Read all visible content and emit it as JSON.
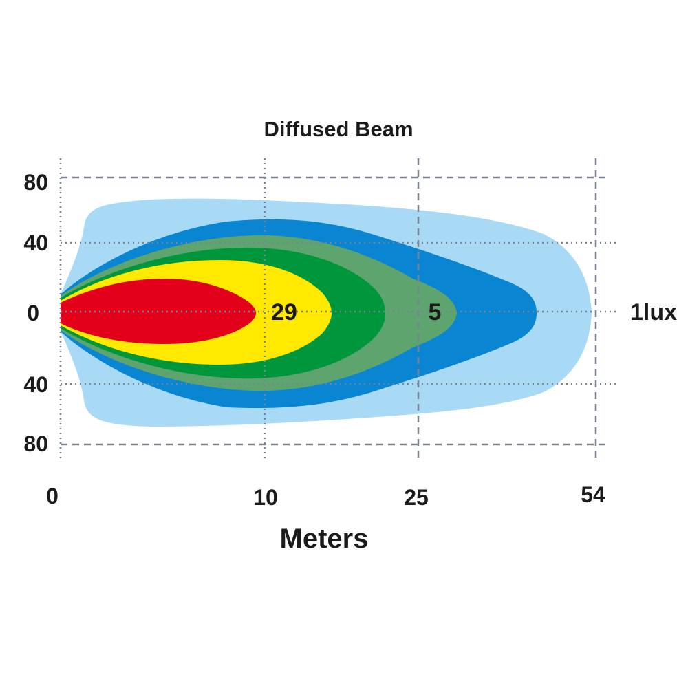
{
  "chart_data": {
    "type": "area",
    "title": "Diffused Beam",
    "xlabel": "Meters",
    "ylabel": "",
    "x_ticks": [
      "0",
      "10",
      "25",
      "54"
    ],
    "y_ticks": [
      "80",
      "40",
      "0",
      "40",
      "80"
    ],
    "grid": true,
    "contours": [
      {
        "lux": "1lux",
        "color": "#a8daf5",
        "reach_m": 54,
        "half_width": 68
      },
      {
        "lux": "",
        "color": "#0a85d1",
        "reach_m": 47,
        "half_width": 55
      },
      {
        "lux": "5",
        "color": "#5ea46e",
        "reach_m": 30,
        "half_width": 45
      },
      {
        "lux": "",
        "color": "#00963b",
        "reach_m": 23,
        "half_width": 40
      },
      {
        "lux": "29",
        "color": "#ffe900",
        "reach_m": 17,
        "half_width": 30
      },
      {
        "lux": "",
        "color": "#e3001b",
        "reach_m": 10,
        "half_width": 18
      }
    ],
    "annotations": [
      {
        "text": "29",
        "x_m": 10,
        "y": 0
      },
      {
        "text": "5",
        "x_m": 25,
        "y": 0
      },
      {
        "text": "1lux",
        "x_m": 54,
        "y": 0
      }
    ]
  }
}
